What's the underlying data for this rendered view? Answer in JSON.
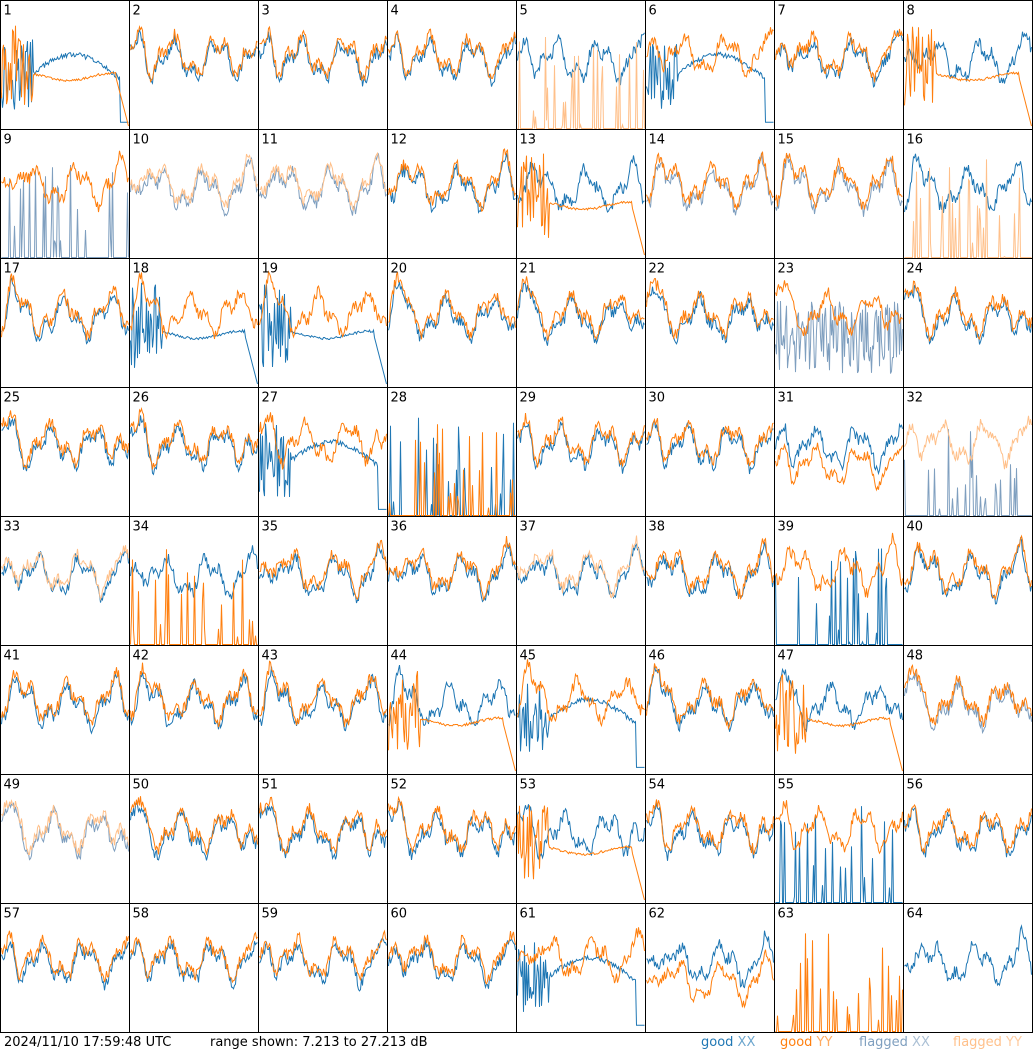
{
  "chart_data": {
    "type": "line",
    "layout": "8x8 small-multiples grid",
    "panels": [
      "1",
      "2",
      "3",
      "4",
      "5",
      "6",
      "7",
      "8",
      "9",
      "10",
      "11",
      "12",
      "13",
      "14",
      "15",
      "16",
      "17",
      "18",
      "19",
      "20",
      "21",
      "22",
      "23",
      "24",
      "25",
      "26",
      "27",
      "28",
      "29",
      "30",
      "31",
      "32",
      "33",
      "34",
      "35",
      "36",
      "37",
      "38",
      "39",
      "40",
      "41",
      "42",
      "43",
      "44",
      "45",
      "46",
      "47",
      "48",
      "49",
      "50",
      "51",
      "52",
      "53",
      "54",
      "55",
      "56",
      "57",
      "58",
      "59",
      "60",
      "61",
      "62",
      "63",
      "64"
    ],
    "profiles": {
      "1": {
        "xx": "dip",
        "yy": "rolloff"
      },
      "2": {
        "xx": "normal",
        "yy": "normal"
      },
      "3": {
        "xx": "normal",
        "yy": "normal"
      },
      "4": {
        "xx": "normal",
        "yy": "normal"
      },
      "5": {
        "xx": "normal",
        "yy": "spikes_flagged"
      },
      "6": {
        "xx": "dip",
        "yy": "normal"
      },
      "7": {
        "xx": "normal",
        "yy": "normal"
      },
      "8": {
        "xx": "normal",
        "yy": "rolloff"
      },
      "9": {
        "xx": "spikes_flagged",
        "yy": "normal"
      },
      "10": {
        "xx": "flagged",
        "yy": "flagged"
      },
      "11": {
        "xx": "flagged",
        "yy": "flagged"
      },
      "12": {
        "xx": "normal",
        "yy": "normal"
      },
      "13": {
        "xx": "normal",
        "yy": "rolloff"
      },
      "14": {
        "xx": "flagged",
        "yy": "normal"
      },
      "15": {
        "xx": "flagged",
        "yy": "normal"
      },
      "16": {
        "xx": "normal",
        "yy": "spikes_flagged"
      },
      "17": {
        "xx": "normal",
        "yy": "normal"
      },
      "18": {
        "xx": "rolloff",
        "yy": "normal"
      },
      "19": {
        "xx": "rolloff",
        "yy": "normal"
      },
      "20": {
        "xx": "normal",
        "yy": "normal"
      },
      "21": {
        "xx": "normal",
        "yy": "normal"
      },
      "22": {
        "xx": "normal",
        "yy": "normal"
      },
      "23": {
        "xx": "noisy_flagged",
        "yy": "normal"
      },
      "24": {
        "xx": "normal",
        "yy": "normal"
      },
      "25": {
        "xx": "normal",
        "yy": "normal"
      },
      "26": {
        "xx": "normal",
        "yy": "normal"
      },
      "27": {
        "xx": "dip",
        "yy": "normal"
      },
      "28": {
        "xx": "spikes",
        "yy": "spikes"
      },
      "29": {
        "xx": "normal",
        "yy": "normal"
      },
      "30": {
        "xx": "normal",
        "yy": "normal"
      },
      "31": {
        "xx": "normal",
        "yy": "low"
      },
      "32": {
        "xx": "spikes_flagged",
        "yy": "flagged"
      },
      "33": {
        "xx": "normal",
        "yy": "flagged"
      },
      "34": {
        "xx": "normal",
        "yy": "spikes"
      },
      "35": {
        "xx": "normal",
        "yy": "normal"
      },
      "36": {
        "xx": "normal",
        "yy": "normal"
      },
      "37": {
        "xx": "normal",
        "yy": "flagged"
      },
      "38": {
        "xx": "normal",
        "yy": "normal"
      },
      "39": {
        "xx": "spikes",
        "yy": "normal"
      },
      "40": {
        "xx": "normal",
        "yy": "normal"
      },
      "41": {
        "xx": "normal",
        "yy": "normal"
      },
      "42": {
        "xx": "normal",
        "yy": "normal"
      },
      "43": {
        "xx": "normal",
        "yy": "normal"
      },
      "44": {
        "xx": "normal",
        "yy": "rolloff"
      },
      "45": {
        "xx": "dip",
        "yy": "normal"
      },
      "46": {
        "xx": "normal",
        "yy": "normal"
      },
      "47": {
        "xx": "normal",
        "yy": "rolloff"
      },
      "48": {
        "xx": "flagged",
        "yy": "normal"
      },
      "49": {
        "xx": "flagged",
        "yy": "flagged"
      },
      "50": {
        "xx": "normal",
        "yy": "normal"
      },
      "51": {
        "xx": "normal",
        "yy": "normal"
      },
      "52": {
        "xx": "normal",
        "yy": "normal"
      },
      "53": {
        "xx": "normal",
        "yy": "rolloff"
      },
      "54": {
        "xx": "normal",
        "yy": "normal"
      },
      "55": {
        "xx": "spikes",
        "yy": "normal"
      },
      "56": {
        "xx": "normal",
        "yy": "normal"
      },
      "57": {
        "xx": "normal",
        "yy": "normal"
      },
      "58": {
        "xx": "normal",
        "yy": "normal"
      },
      "59": {
        "xx": "normal",
        "yy": "normal"
      },
      "60": {
        "xx": "normal",
        "yy": "normal"
      },
      "61": {
        "xx": "dip",
        "yy": "normal"
      },
      "62": {
        "xx": "normal",
        "yy": "low"
      },
      "63": {
        "xx": "none",
        "yy": "spikes"
      },
      "64": {
        "xx": "normal",
        "yy": "none"
      }
    },
    "y_range_db": [
      7.213,
      27.213
    ],
    "colors": {
      "good_xx": "#1f77b4",
      "good_yy": "#ff7f0e",
      "flagged_xx": "#7f9fbf",
      "flagged_yy": "#ffc08a"
    }
  },
  "footer": {
    "timestamp": "2024/11/10 17:59:48 UTC",
    "range_text": "range shown: 7.213 to 27.213 dB",
    "legend": {
      "good_prefix": "good ",
      "flagged_prefix": "flagged ",
      "xx": "XX",
      "yy": "YY"
    }
  }
}
